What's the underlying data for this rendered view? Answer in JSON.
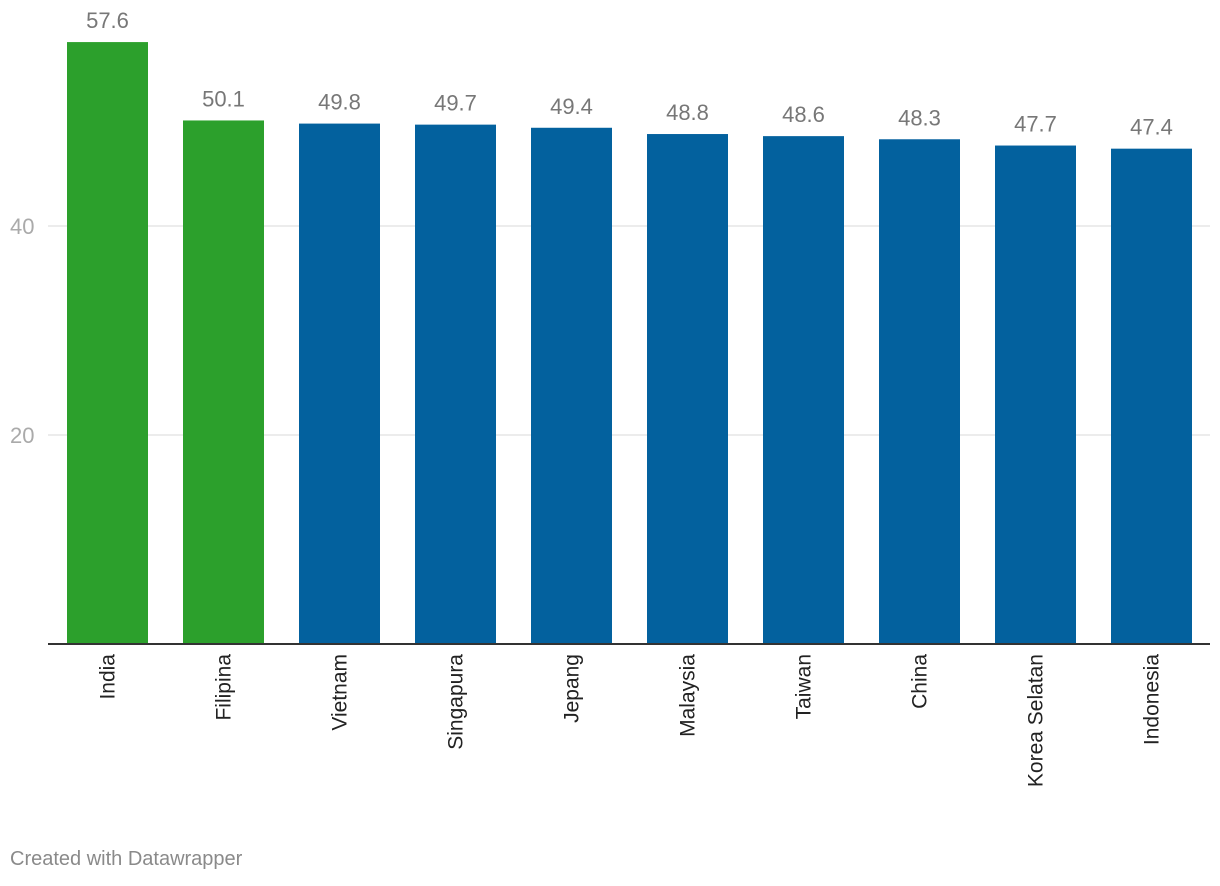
{
  "chart_data": {
    "type": "bar",
    "categories": [
      "India",
      "Filipina",
      "Vietnam",
      "Singapura",
      "Jepang",
      "Malaysia",
      "Taiwan",
      "China",
      "Korea Selatan",
      "Indonesia"
    ],
    "values": [
      57.6,
      50.1,
      49.8,
      49.7,
      49.4,
      48.8,
      48.6,
      48.3,
      47.7,
      47.4
    ],
    "colors": [
      "#2ca02c",
      "#2ca02c",
      "#03619e",
      "#03619e",
      "#03619e",
      "#03619e",
      "#03619e",
      "#03619e",
      "#03619e",
      "#03619e"
    ],
    "y_ticks": [
      20,
      40
    ],
    "ylim": [
      0,
      60
    ],
    "grid": true,
    "value_labels": [
      "57.6",
      "50.1",
      "49.8",
      "49.7",
      "49.4",
      "48.8",
      "48.6",
      "48.3",
      "47.7",
      "47.4"
    ]
  },
  "footer": {
    "credit": "Created with Datawrapper"
  },
  "colors": {
    "highlight": "#2ca02c",
    "default": "#03619e",
    "grid": "#e6e6e6",
    "axis": "#333333",
    "tick_text": "#aaaaaa",
    "value_text": "#777777",
    "label_text": "#222222"
  }
}
